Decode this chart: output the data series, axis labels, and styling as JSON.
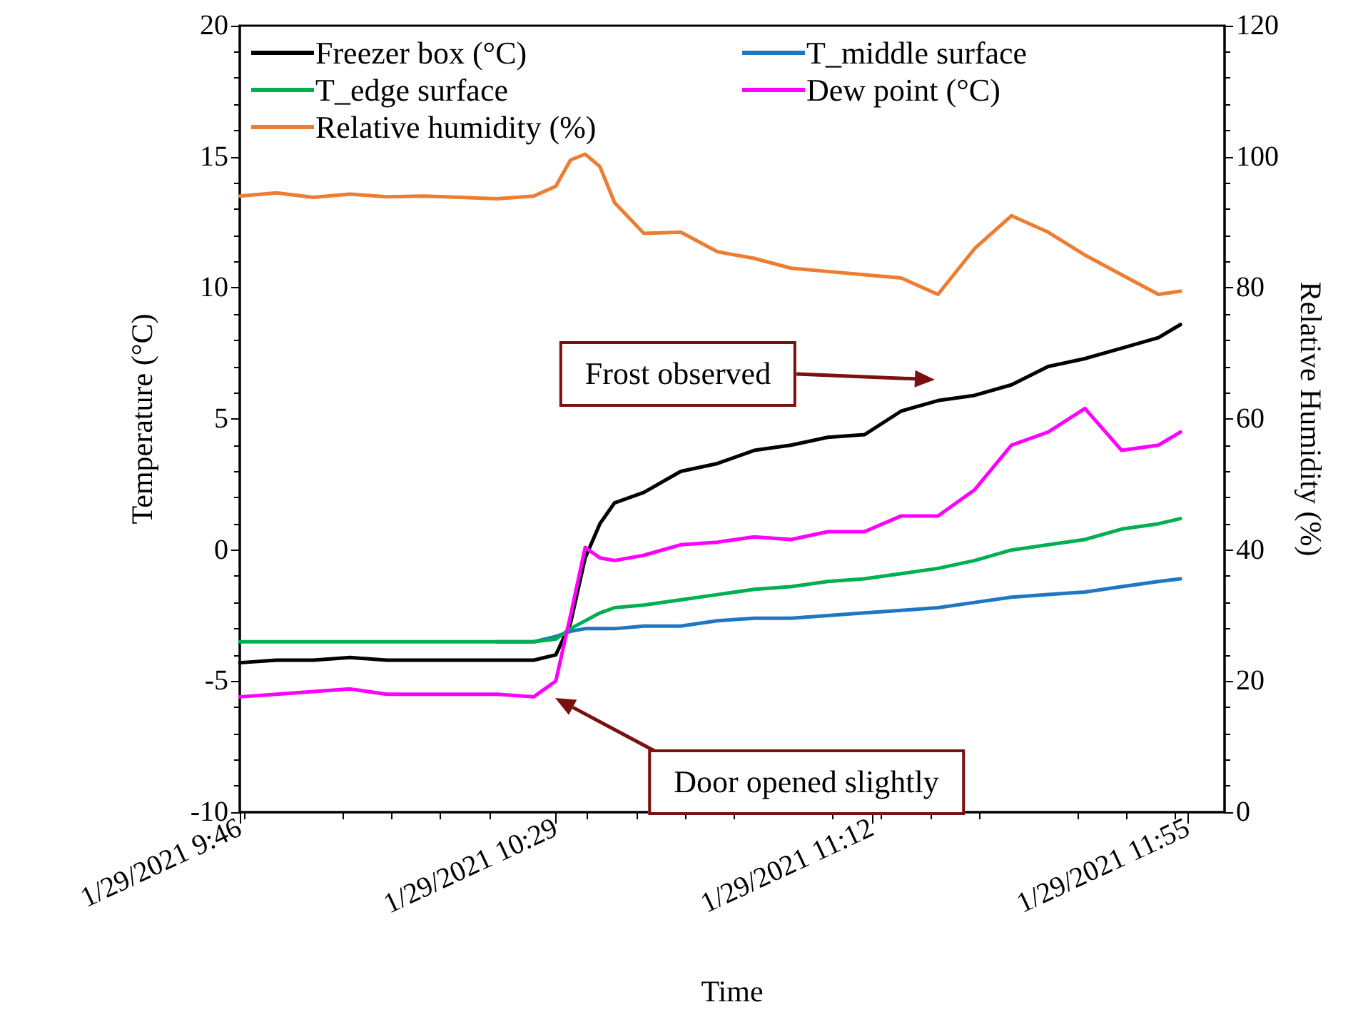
{
  "chart_data": {
    "type": "line",
    "xlabel": "Time",
    "ylabel": "Temperature (°C)",
    "y2label": "Relative Humidity (%)",
    "x": [
      "2021-01-29T09:46",
      "2021-01-29T09:51",
      "2021-01-29T09:56",
      "2021-01-29T10:01",
      "2021-01-29T10:06",
      "2021-01-29T10:11",
      "2021-01-29T10:16",
      "2021-01-29T10:21",
      "2021-01-29T10:26",
      "2021-01-29T10:29",
      "2021-01-29T10:31",
      "2021-01-29T10:33",
      "2021-01-29T10:35",
      "2021-01-29T10:37",
      "2021-01-29T10:41",
      "2021-01-29T10:46",
      "2021-01-29T10:51",
      "2021-01-29T10:56",
      "2021-01-29T11:01",
      "2021-01-29T11:06",
      "2021-01-29T11:11",
      "2021-01-29T11:16",
      "2021-01-29T11:21",
      "2021-01-29T11:26",
      "2021-01-29T11:31",
      "2021-01-29T11:36",
      "2021-01-29T11:41",
      "2021-01-29T11:46",
      "2021-01-29T11:51",
      "2021-01-29T11:54"
    ],
    "series": [
      {
        "name": "Freezer box (°C)",
        "color": "#000000",
        "values": [
          -4.3,
          -4.2,
          -4.2,
          -4.1,
          -4.2,
          -4.2,
          -4.2,
          -4.2,
          -4.2,
          -4.0,
          -2.8,
          -0.3,
          1.0,
          1.8,
          2.2,
          3.0,
          3.3,
          3.8,
          4.0,
          4.3,
          4.4,
          5.3,
          5.7,
          5.9,
          6.3,
          7.0,
          7.3,
          7.7,
          8.1,
          8.6
        ]
      },
      {
        "name": "T_middle surface",
        "color": "#1f77c4",
        "values": [
          null,
          null,
          null,
          null,
          null,
          null,
          null,
          -3.5,
          -3.5,
          -3.3,
          -3.1,
          -3.0,
          -3.0,
          -3.0,
          -2.9,
          -2.9,
          -2.7,
          -2.6,
          -2.6,
          -2.5,
          -2.4,
          -2.3,
          -2.2,
          -2.0,
          -1.8,
          -1.7,
          -1.6,
          -1.4,
          -1.2,
          -1.1
        ]
      },
      {
        "name": "T_edge surface",
        "color": "#00b050",
        "values": [
          -3.5,
          -3.5,
          -3.5,
          -3.5,
          -3.5,
          -3.5,
          -3.5,
          -3.5,
          -3.5,
          -3.4,
          -3.0,
          -2.7,
          -2.4,
          -2.2,
          -2.1,
          -1.9,
          -1.7,
          -1.5,
          -1.4,
          -1.2,
          -1.1,
          -0.9,
          -0.7,
          -0.4,
          0.0,
          0.2,
          0.4,
          0.8,
          1.0,
          1.2
        ]
      },
      {
        "name": "Dew point (°C)",
        "color": "#ff00ff",
        "values": [
          -5.6,
          -5.5,
          -5.4,
          -5.3,
          -5.5,
          -5.5,
          -5.5,
          -5.5,
          -5.6,
          -5.0,
          -2.5,
          0.1,
          -0.3,
          -0.4,
          -0.2,
          0.2,
          0.3,
          0.5,
          0.4,
          0.7,
          0.7,
          1.3,
          1.3,
          2.3,
          4.0,
          4.5,
          5.4,
          3.8,
          4.0,
          4.5
        ]
      },
      {
        "name": "Relative humidity (%)",
        "color": "#ed7d31",
        "axis": "y2",
        "values": [
          94.0,
          94.5,
          93.8,
          94.3,
          93.9,
          94.0,
          93.8,
          93.6,
          94.0,
          95.5,
          99.5,
          100.4,
          98.5,
          93.0,
          88.3,
          88.5,
          85.5,
          84.5,
          83.0,
          82.5,
          82.0,
          81.5,
          79.0,
          86.0,
          91.0,
          88.5,
          85.0,
          82.0,
          79.0,
          79.5
        ]
      }
    ],
    "xlim": [
      "2021-01-29T09:46",
      "2021-01-29T12:00"
    ],
    "xticks": [
      {
        "value": "2021-01-29T09:46",
        "label": "1/29/2021 9:46"
      },
      {
        "value": "2021-01-29T10:29",
        "label": "1/29/2021 10:29"
      },
      {
        "value": "2021-01-29T11:12",
        "label": "1/29/2021 11:12"
      },
      {
        "value": "2021-01-29T11:55",
        "label": "1/29/2021 11:55"
      }
    ],
    "ylim": [
      -10,
      20
    ],
    "yticks": [
      -10,
      -5,
      0,
      5,
      10,
      15,
      20
    ],
    "y2lim": [
      0,
      120
    ],
    "y2ticks": [
      0,
      20,
      40,
      60,
      80,
      100,
      120
    ],
    "annotations": [
      "Frost observed",
      "Door opened slightly"
    ],
    "legend": "top",
    "grid": false,
    "marker": "none",
    "line_style": "solid"
  }
}
